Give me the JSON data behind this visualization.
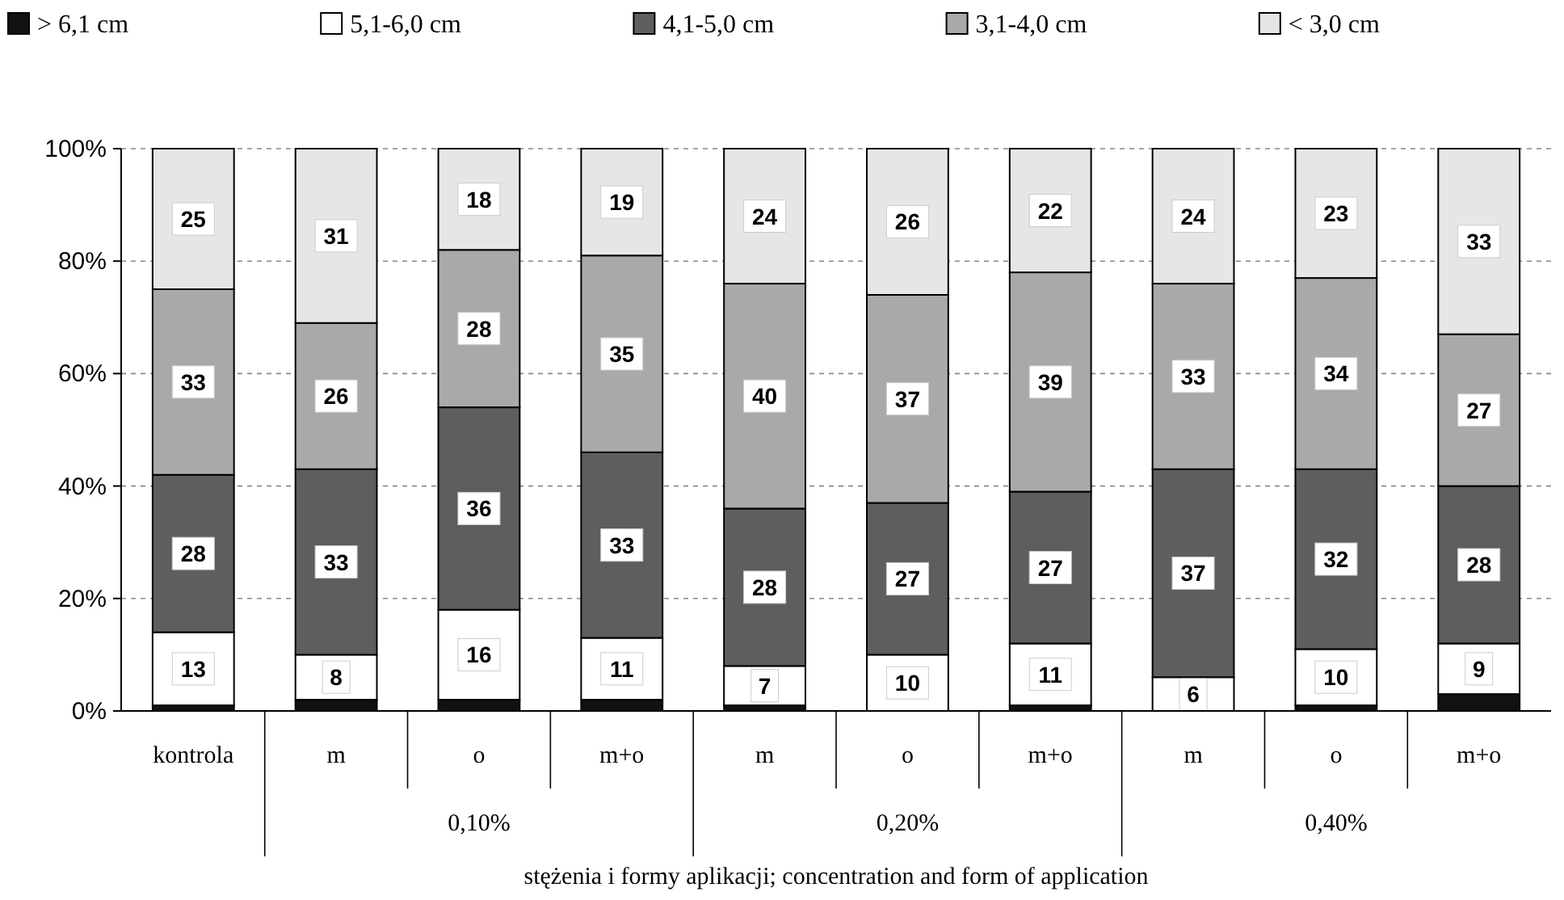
{
  "chart_data": {
    "type": "bar",
    "stacked": true,
    "xlabel": "stężenia i formy aplikacji; concentration and form of application",
    "categories": [
      "kontrola",
      "m",
      "o",
      "m+o",
      "m",
      "o",
      "m+o",
      "m",
      "o",
      "m+o"
    ],
    "series": [
      {
        "name": "> 6,1 cm",
        "color": "#111111",
        "values": [
          1,
          2,
          2,
          2,
          1,
          0,
          1,
          0,
          1,
          3
        ],
        "value_labels": [
          null,
          null,
          null,
          null,
          null,
          null,
          null,
          null,
          null,
          null
        ]
      },
      {
        "name": "5,1-6,0 cm",
        "color": "#ffffff",
        "values": [
          13,
          8,
          16,
          11,
          7,
          10,
          11,
          6,
          10,
          9
        ],
        "value_labels": [
          "13",
          "8",
          "16",
          "11",
          "7",
          "10",
          "11",
          "6",
          "10",
          "9"
        ]
      },
      {
        "name": "4,1-5,0 cm",
        "color": "#5e5e5e",
        "values": [
          28,
          33,
          36,
          33,
          28,
          27,
          27,
          37,
          32,
          28
        ],
        "value_labels": [
          "28",
          "33",
          "36",
          "33",
          "28",
          "27",
          "27",
          "37",
          "32",
          "28"
        ]
      },
      {
        "name": "3,1-4,0 cm",
        "color": "#a9a9a9",
        "values": [
          33,
          26,
          28,
          35,
          40,
          37,
          39,
          33,
          34,
          27
        ],
        "value_labels": [
          "33",
          "26",
          "28",
          "35",
          "40",
          "37",
          "39",
          "33",
          "34",
          "27"
        ]
      },
      {
        "name": "< 3,0 cm",
        "color": "#e6e6e6",
        "values": [
          25,
          31,
          18,
          19,
          24,
          26,
          22,
          24,
          23,
          33
        ],
        "value_labels": [
          "25",
          "31",
          "18",
          "19",
          "24",
          "26",
          "22",
          "24",
          "23",
          "33"
        ]
      }
    ],
    "ylim": [
      0,
      100
    ],
    "yticks": [
      {
        "value": 0,
        "label": "0%"
      },
      {
        "value": 20,
        "label": "20%"
      },
      {
        "value": 40,
        "label": "40%"
      },
      {
        "value": 60,
        "label": "60%"
      },
      {
        "value": 80,
        "label": "80%"
      },
      {
        "value": 100,
        "label": "100%"
      }
    ],
    "grid": "y",
    "legend": "top",
    "annotations": [
      "0,10%",
      "0,20%",
      "0,40%"
    ]
  }
}
